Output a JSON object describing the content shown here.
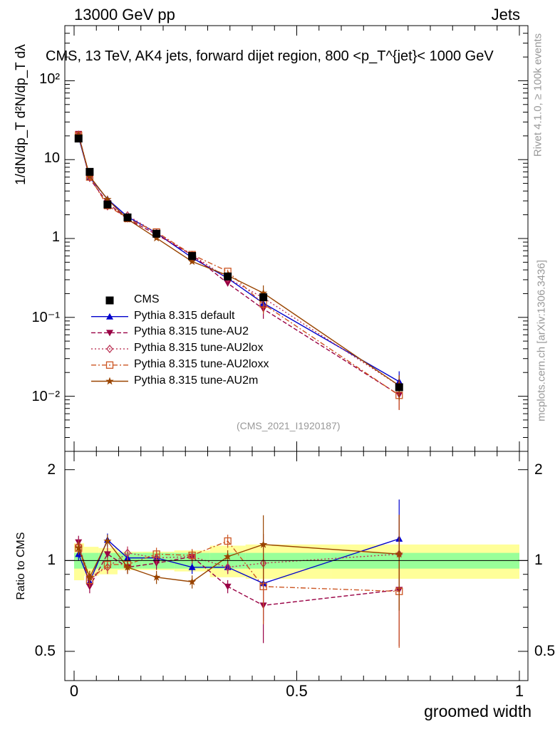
{
  "header": {
    "left": "13000 GeV pp",
    "right": "Jets"
  },
  "side": {
    "rivet": "Rivet 4.1.0, ≥ 100k events",
    "mcplots": "mcplots.cern.ch [arXiv:1306.3436]"
  },
  "watermark": "(CMS_2021_I1920187)",
  "chart_data": {
    "type": "line",
    "title": "CMS, 13 TeV, AK4 jets, forward dijet region, 800 <p_T^{jet}< 1000 GeV",
    "ylabel_top": "1/dN/dp_T  d²N/dp_T dλ",
    "ylabel_ratio": "Ratio to CMS",
    "xlabel": "groomed width",
    "xlim": [
      0,
      1
    ],
    "ylim_top": [
      0.002,
      500
    ],
    "ylim_ratio": [
      0.4,
      2.3
    ],
    "x_ticks": [
      "0",
      "0.5",
      "1"
    ],
    "y_ticks_top": [
      "10⁻²",
      "10⁻¹",
      "1",
      "10",
      "10²"
    ],
    "y_ticks_ratio": [
      "0.5",
      "1",
      "2"
    ],
    "x": [
      0.01,
      0.035,
      0.075,
      0.12,
      0.185,
      0.265,
      0.345,
      0.425,
      0.73
    ],
    "data": {
      "name": "CMS",
      "values": [
        18.5,
        7.0,
        2.7,
        1.85,
        1.15,
        0.6,
        0.33,
        0.18,
        0.013
      ],
      "band_inner": [
        0.06,
        0.06,
        0.06,
        0.06,
        0.06,
        0.06,
        0.06,
        0.06,
        0.06
      ],
      "band_outer": [
        0.14,
        0.11,
        0.1,
        0.07,
        0.07,
        0.08,
        0.12,
        0.13,
        0.13
      ]
    },
    "series": [
      {
        "name": "Pythia 8.315 default",
        "color": "#0000cc",
        "marker": "triangle-up",
        "dash": "solid",
        "ratio": [
          1.05,
          0.85,
          1.17,
          1.02,
          1.02,
          0.95,
          0.95,
          0.84,
          1.18
        ]
      },
      {
        "name": "Pythia 8.315 tune-AU2",
        "color": "#990044",
        "marker": "triangle-down",
        "dash": "dashed",
        "ratio": [
          1.15,
          0.82,
          1.05,
          0.95,
          0.98,
          1.03,
          0.82,
          0.71,
          0.8
        ]
      },
      {
        "name": "Pythia 8.315 tune-AU2lox",
        "color": "#bb3355",
        "marker": "diamond",
        "dash": "dotted",
        "ratio": [
          1.12,
          0.88,
          0.95,
          1.06,
          1.02,
          1.03,
          0.95,
          0.98,
          1.05
        ]
      },
      {
        "name": "Pythia 8.315 tune-AU2loxx",
        "color": "#cc5522",
        "marker": "open-square",
        "dash": "dashdot",
        "ratio": [
          1.1,
          0.86,
          0.97,
          0.97,
          1.05,
          1.04,
          1.16,
          0.82,
          0.79
        ]
      },
      {
        "name": "Pythia 8.315 tune-AU2m",
        "color": "#994400",
        "marker": "star",
        "dash": "solid",
        "ratio": [
          1.1,
          0.88,
          1.16,
          0.95,
          0.88,
          0.85,
          1.03,
          1.13,
          1.05
        ]
      }
    ]
  }
}
